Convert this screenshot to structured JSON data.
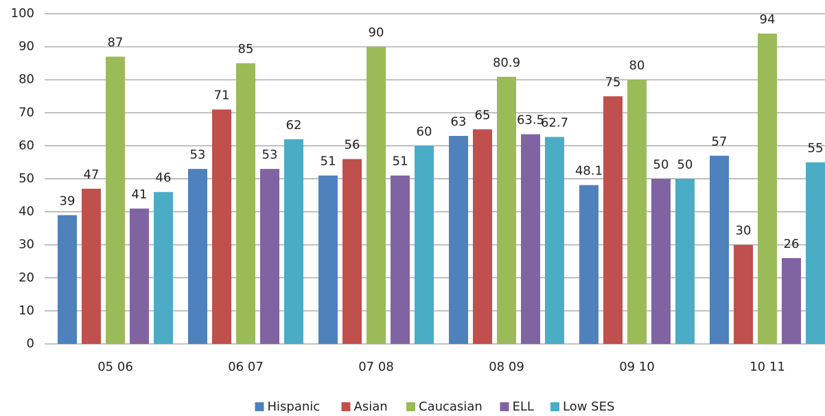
{
  "chart_data": {
    "type": "bar",
    "categories": [
      "05 06",
      "06 07",
      "07 08",
      "08 09",
      "09 10",
      "10 11"
    ],
    "series": [
      {
        "name": "Hispanic",
        "color": "#4f81bd",
        "values": [
          39,
          53,
          51,
          63,
          48.1,
          57
        ]
      },
      {
        "name": "Asian",
        "color": "#c0504d",
        "values": [
          47,
          71,
          56,
          65,
          75,
          30
        ]
      },
      {
        "name": "Caucasian",
        "color": "#9bbb59",
        "values": [
          87,
          85,
          90,
          80.9,
          80,
          94
        ]
      },
      {
        "name": "ELL",
        "color": "#8064a2",
        "values": [
          41,
          53,
          51,
          63.5,
          50,
          26
        ]
      },
      {
        "name": "Low SES",
        "color": "#4bacc6",
        "values": [
          46,
          62,
          60,
          62.7,
          50,
          55
        ]
      }
    ],
    "ylim": [
      0,
      100
    ],
    "yticks": [
      0,
      10,
      20,
      30,
      40,
      50,
      60,
      70,
      80,
      90,
      100
    ],
    "grid": true,
    "legend": "bottom"
  }
}
